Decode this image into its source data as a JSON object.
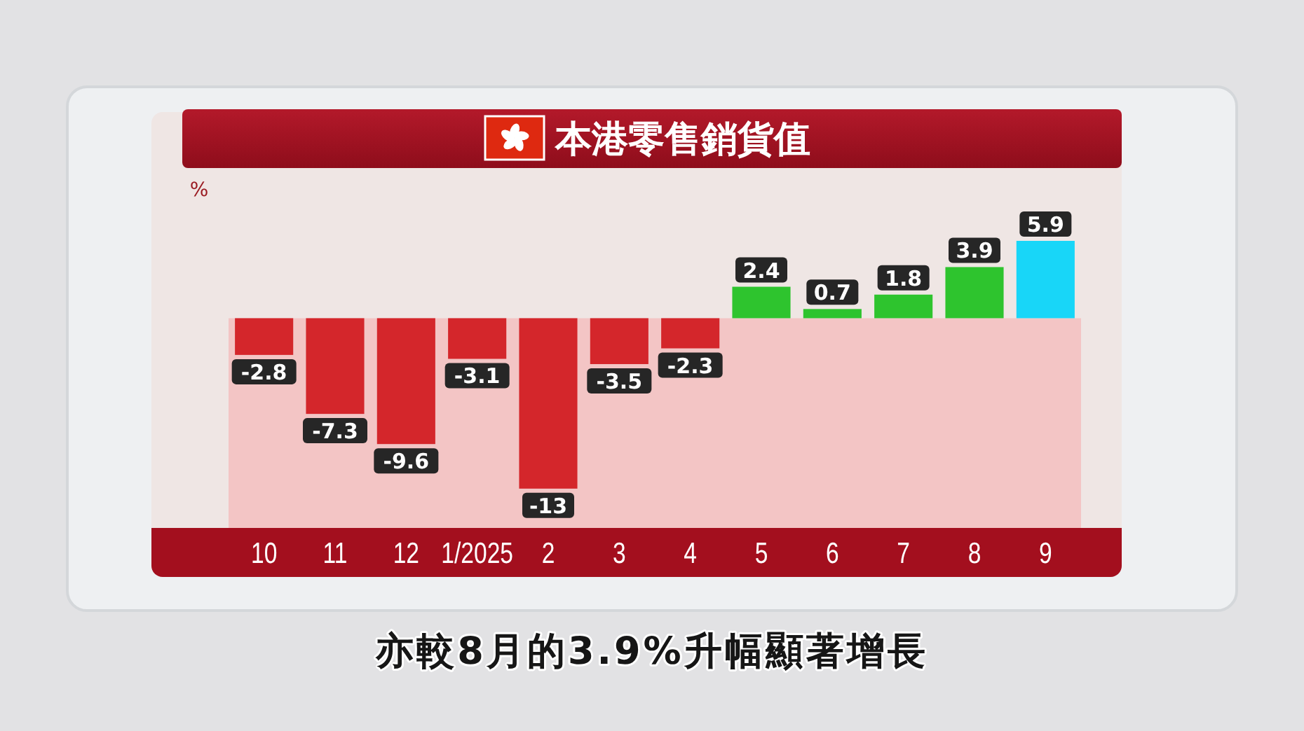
{
  "chart_data": {
    "type": "bar",
    "title": "本港零售銷貨值",
    "ylabel": "%",
    "categories": [
      "10",
      "11",
      "12",
      "1/2025",
      "2",
      "3",
      "4",
      "5",
      "6",
      "7",
      "8",
      "9"
    ],
    "values": [
      -2.8,
      -7.3,
      -9.6,
      -3.1,
      -13,
      -3.5,
      -2.3,
      2.4,
      0.7,
      1.8,
      3.9,
      5.9
    ],
    "colors": [
      "#d4262b",
      "#d4262b",
      "#d4262b",
      "#d4262b",
      "#d4262b",
      "#d4262b",
      "#d4262b",
      "#2ec42e",
      "#2ec42e",
      "#2ec42e",
      "#2ec42e",
      "#18d6f8"
    ],
    "data_labels": true,
    "bands": [
      {
        "axis": "y",
        "from": -16,
        "to": 0,
        "color": "#f3c5c5"
      }
    ],
    "annotations": [
      "亦較8月的3.9%升幅顯著增長"
    ]
  }
}
